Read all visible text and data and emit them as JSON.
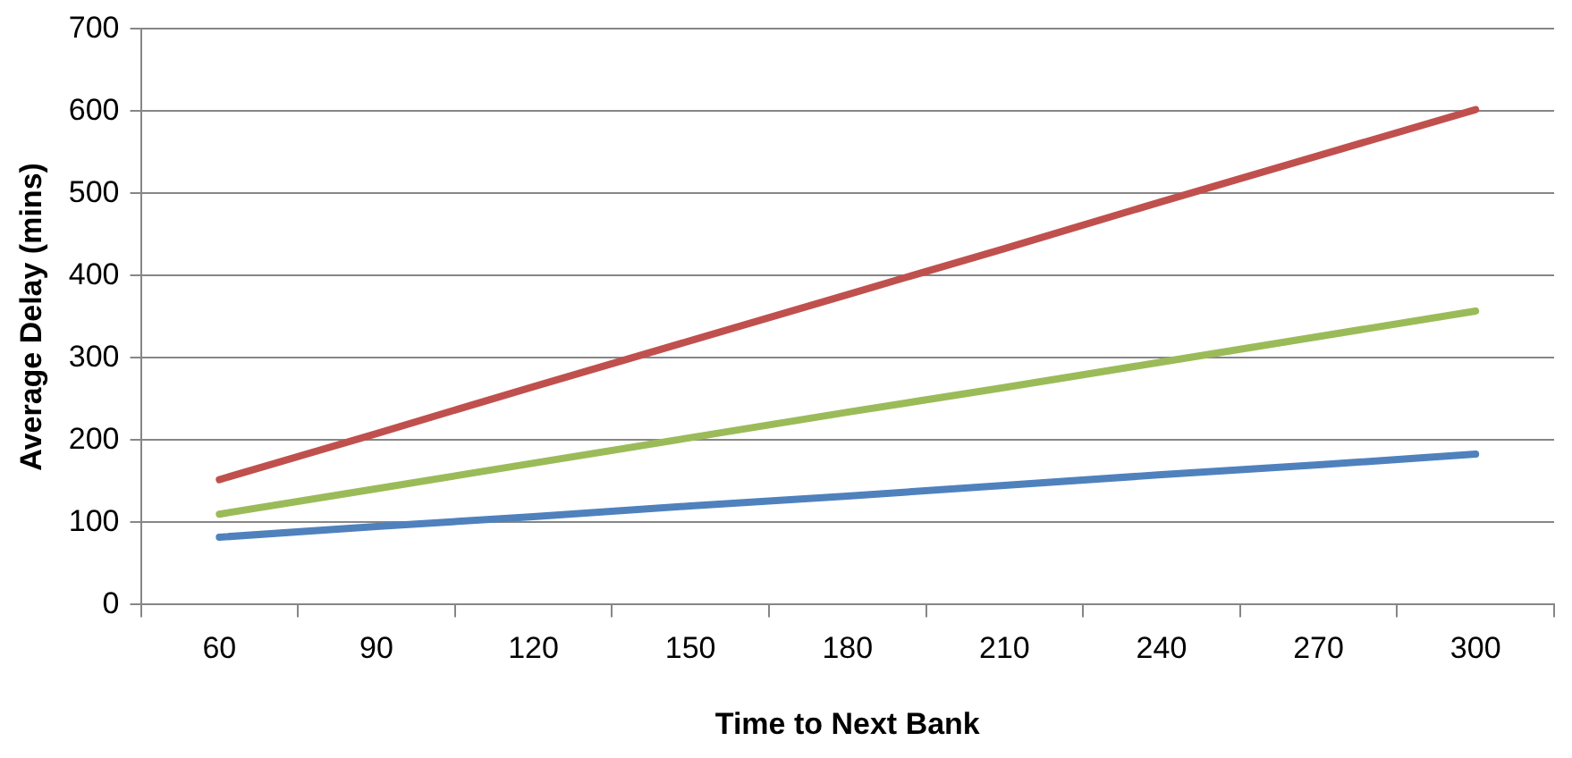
{
  "chart_data": {
    "type": "line",
    "xlabel": "Time to Next Bank",
    "ylabel": "Average Delay (mins)",
    "categories": [
      "60",
      "90",
      "120",
      "150",
      "180",
      "210",
      "240",
      "270",
      "300"
    ],
    "series": [
      {
        "color": "#4f81bd",
        "values": [
          82,
          95,
          107,
          120,
          132,
          145,
          158,
          170,
          183
        ]
      },
      {
        "color": "#c0504d",
        "values": [
          152,
          208,
          265,
          321,
          377,
          433,
          490,
          546,
          602
        ]
      },
      {
        "color": "#9bbb59",
        "values": [
          110,
          141,
          172,
          203,
          234,
          264,
          295,
          326,
          357
        ]
      }
    ],
    "ylim": [
      0,
      700
    ],
    "yticks": [
      0,
      100,
      200,
      300,
      400,
      500,
      600,
      700
    ],
    "grid": "y",
    "legend": false,
    "marker": "none",
    "line_style": "solid"
  }
}
